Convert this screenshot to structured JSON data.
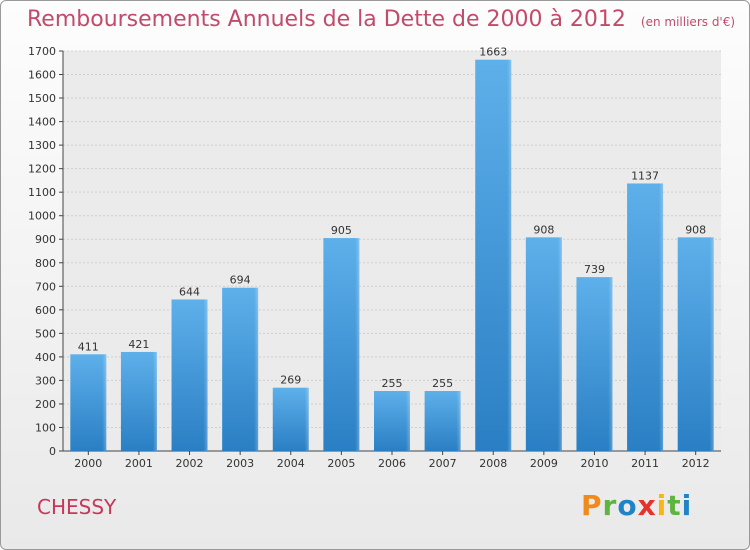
{
  "header": {
    "title": "Remboursements Annuels de la Dette de 2000 à 2012",
    "subtitle": "(en milliers d'€)"
  },
  "commune": "CHESSY",
  "logo": {
    "text": "Proxiti",
    "letters": [
      "P",
      "r",
      "o",
      "x",
      "i",
      "t",
      "i"
    ]
  },
  "colors": {
    "bar": "#3a95d9",
    "title": "#c24b6b",
    "axis": "#444444",
    "grid": "#cfcfcf"
  },
  "chart_data": {
    "type": "bar",
    "title": "Remboursements Annuels de la Dette de 2000 à 2012",
    "categories": [
      "2000",
      "2001",
      "2002",
      "2003",
      "2004",
      "2005",
      "2006",
      "2007",
      "2008",
      "2009",
      "2010",
      "2011",
      "2012"
    ],
    "values": [
      411,
      421,
      644,
      694,
      269,
      905,
      255,
      255,
      1663,
      908,
      739,
      1137,
      908
    ],
    "ylim": [
      0,
      1700
    ],
    "yticks": [
      0,
      100,
      200,
      300,
      400,
      500,
      600,
      700,
      800,
      900,
      1000,
      1100,
      1200,
      1300,
      1400,
      1500,
      1600,
      1700
    ],
    "grid": true,
    "xlabel": "",
    "ylabel": ""
  }
}
